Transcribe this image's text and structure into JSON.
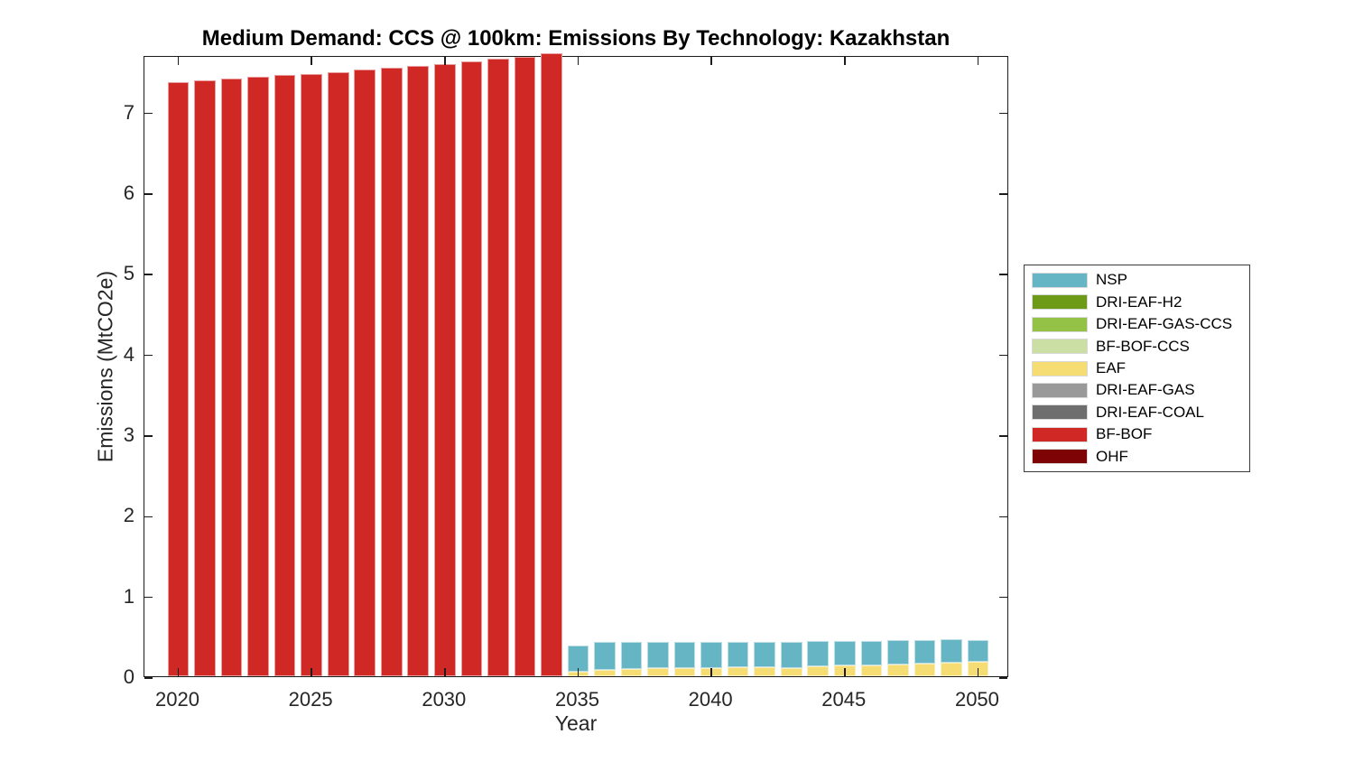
{
  "chart_data": {
    "type": "bar",
    "stacked": true,
    "title": "Medium Demand: CCS @ 100km: Emissions By Technology: Kazakhstan",
    "xlabel": "Year",
    "ylabel": "Emissions (MtCO2e)",
    "grid": false,
    "legend_position": "right-outside",
    "xlim": [
      2018.73,
      2051.17
    ],
    "ylim": [
      0,
      7.7
    ],
    "xticks": [
      2020,
      2025,
      2030,
      2035,
      2040,
      2045,
      2050
    ],
    "yticks": [
      0,
      1,
      2,
      3,
      4,
      5,
      6,
      7
    ],
    "bar_width_years": 0.8,
    "x": [
      2020,
      2021,
      2022,
      2023,
      2024,
      2025,
      2026,
      2027,
      2028,
      2029,
      2030,
      2031,
      2032,
      2033,
      2034,
      2035,
      2036,
      2037,
      2038,
      2039,
      2040,
      2041,
      2042,
      2043,
      2044,
      2045,
      2046,
      2047,
      2048,
      2049,
      2050
    ],
    "series": [
      {
        "name": "OHF",
        "color": "#7e0304",
        "values": [
          0,
          0,
          0,
          0,
          0,
          0,
          0,
          0,
          0,
          0,
          0,
          0,
          0,
          0,
          0,
          0,
          0,
          0,
          0,
          0,
          0,
          0,
          0,
          0,
          0,
          0,
          0,
          0,
          0,
          0,
          0
        ]
      },
      {
        "name": "BF-BOF",
        "color": "#d02825",
        "values": [
          7.37,
          7.39,
          7.41,
          7.43,
          7.45,
          7.47,
          7.49,
          7.52,
          7.54,
          7.57,
          7.59,
          7.62,
          7.65,
          7.68,
          7.72,
          0,
          0,
          0,
          0,
          0,
          0,
          0,
          0,
          0,
          0,
          0,
          0,
          0,
          0,
          0,
          0
        ]
      },
      {
        "name": "DRI-EAF-COAL",
        "color": "#6e6e6e",
        "values": [
          0,
          0,
          0,
          0,
          0,
          0,
          0,
          0,
          0,
          0,
          0,
          0,
          0,
          0,
          0,
          0,
          0,
          0,
          0,
          0,
          0,
          0,
          0,
          0,
          0,
          0,
          0,
          0,
          0,
          0,
          0
        ]
      },
      {
        "name": "DRI-EAF-GAS",
        "color": "#999999",
        "values": [
          0,
          0,
          0,
          0,
          0,
          0,
          0,
          0,
          0,
          0,
          0,
          0,
          0,
          0,
          0,
          0,
          0,
          0,
          0,
          0,
          0,
          0,
          0,
          0,
          0,
          0,
          0,
          0,
          0,
          0,
          0
        ]
      },
      {
        "name": "EAF",
        "color": "#f5dc73",
        "values": [
          0,
          0,
          0,
          0,
          0,
          0,
          0,
          0,
          0,
          0,
          0,
          0,
          0,
          0,
          0,
          0.06,
          0.08,
          0.09,
          0.1,
          0.1,
          0.1,
          0.11,
          0.11,
          0.1,
          0.12,
          0.13,
          0.14,
          0.15,
          0.16,
          0.17,
          0.18
        ]
      },
      {
        "name": "BF-BOF-CCS",
        "color": "#cbdfa5",
        "values": [
          0,
          0,
          0,
          0,
          0,
          0,
          0,
          0,
          0,
          0,
          0,
          0,
          0,
          0,
          0,
          0,
          0,
          0,
          0,
          0,
          0,
          0,
          0,
          0,
          0,
          0,
          0,
          0,
          0,
          0,
          0
        ]
      },
      {
        "name": "DRI-EAF-GAS-CCS",
        "color": "#94c247",
        "values": [
          0,
          0,
          0,
          0,
          0,
          0,
          0,
          0,
          0,
          0,
          0,
          0,
          0,
          0,
          0,
          0,
          0,
          0,
          0,
          0,
          0,
          0,
          0,
          0,
          0,
          0,
          0,
          0,
          0,
          0,
          0
        ]
      },
      {
        "name": "DRI-EAF-H2",
        "color": "#6e9b17",
        "values": [
          0,
          0,
          0,
          0,
          0,
          0,
          0,
          0,
          0,
          0,
          0,
          0,
          0,
          0,
          0,
          0,
          0,
          0,
          0,
          0,
          0,
          0,
          0,
          0,
          0,
          0,
          0,
          0,
          0,
          0,
          0
        ]
      },
      {
        "name": "NSP",
        "color": "#66b5c4",
        "values": [
          0,
          0,
          0,
          0,
          0,
          0,
          0,
          0,
          0,
          0,
          0,
          0,
          0,
          0,
          0,
          0.32,
          0.34,
          0.34,
          0.33,
          0.33,
          0.33,
          0.32,
          0.32,
          0.33,
          0.32,
          0.31,
          0.3,
          0.3,
          0.29,
          0.29,
          0.27
        ]
      }
    ],
    "legend": {
      "entries": [
        {
          "label": "NSP",
          "color": "#66b5c4"
        },
        {
          "label": "DRI-EAF-H2",
          "color": "#6e9b17"
        },
        {
          "label": "DRI-EAF-GAS-CCS",
          "color": "#94c247"
        },
        {
          "label": "BF-BOF-CCS",
          "color": "#cbdfa5"
        },
        {
          "label": "EAF",
          "color": "#f5dc73"
        },
        {
          "label": "DRI-EAF-GAS",
          "color": "#999999"
        },
        {
          "label": "DRI-EAF-COAL",
          "color": "#6e6e6e"
        },
        {
          "label": "BF-BOF",
          "color": "#d02825"
        },
        {
          "label": "OHF",
          "color": "#7e0304"
        }
      ]
    },
    "colors": {
      "axis": "#1c1c1c",
      "tick_label": "#262626",
      "background": "#ffffff"
    }
  }
}
